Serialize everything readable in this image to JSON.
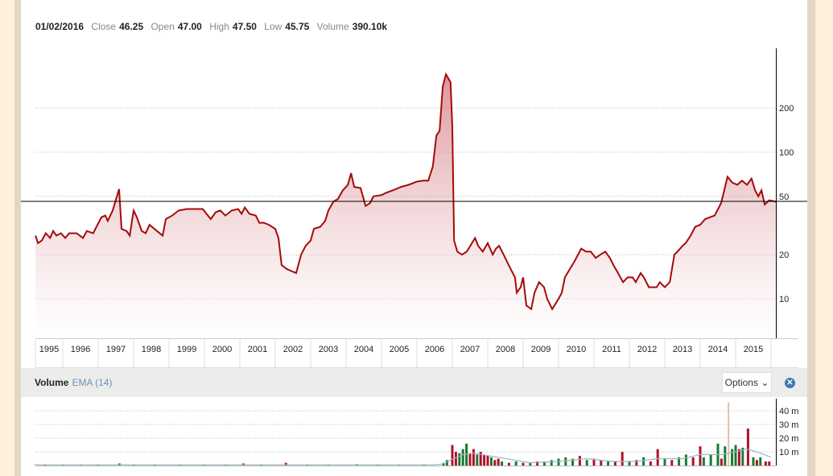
{
  "ohlc": {
    "date": "01/02/2016",
    "close_label": "Close",
    "close": "46.25",
    "open_label": "Open",
    "open": "47.00",
    "high_label": "High",
    "high": "47.50",
    "low_label": "Low",
    "low": "45.75",
    "volume_label": "Volume",
    "volume": "390.10k"
  },
  "volume_panel": {
    "title": "Volume",
    "indicator": "EMA (14)",
    "options_label": "Options",
    "close_icon": "close-circle-icon"
  },
  "colors": {
    "price_line": "#a50a0a",
    "up": "#1a7a2e",
    "down": "#b0102a",
    "ema": "#9ab8c8",
    "spike": "#d8c3b0"
  },
  "chart_data": [
    {
      "type": "area",
      "scale": "log",
      "y_ticks": [
        10,
        20,
        50,
        100,
        200
      ],
      "x_ticks": [
        "1995",
        "1996",
        "1997",
        "1998",
        "1999",
        "2000",
        "2001",
        "2002",
        "2003",
        "2004",
        "2005",
        "2006",
        "2007",
        "2008",
        "2009",
        "2010",
        "2011",
        "2012",
        "2013",
        "2014",
        "2015"
      ],
      "grid": true,
      "current_value": 46.25,
      "points": [
        [
          1995.23,
          27
        ],
        [
          1995.3,
          24
        ],
        [
          1995.41,
          25
        ],
        [
          1995.52,
          28
        ],
        [
          1995.64,
          26
        ],
        [
          1995.73,
          29
        ],
        [
          1995.82,
          27
        ],
        [
          1995.95,
          28
        ],
        [
          1996.07,
          26
        ],
        [
          1996.18,
          28
        ],
        [
          1996.39,
          28
        ],
        [
          1996.57,
          26
        ],
        [
          1996.68,
          29
        ],
        [
          1996.86,
          28
        ],
        [
          1996.98,
          32
        ],
        [
          1997.09,
          36
        ],
        [
          1997.2,
          37
        ],
        [
          1997.27,
          34
        ],
        [
          1997.41,
          40
        ],
        [
          1997.55,
          52
        ],
        [
          1997.59,
          56
        ],
        [
          1997.66,
          30
        ],
        [
          1997.8,
          29
        ],
        [
          1997.89,
          27
        ],
        [
          1998.0,
          40
        ],
        [
          1998.09,
          36
        ],
        [
          1998.23,
          29
        ],
        [
          1998.34,
          28
        ],
        [
          1998.45,
          32
        ],
        [
          1998.66,
          29
        ],
        [
          1998.82,
          27
        ],
        [
          1998.91,
          35
        ],
        [
          1999.09,
          37
        ],
        [
          1999.27,
          40
        ],
        [
          1999.5,
          41
        ],
        [
          1999.95,
          41
        ],
        [
          2000.18,
          35
        ],
        [
          2000.32,
          39
        ],
        [
          2000.45,
          40
        ],
        [
          2000.59,
          37
        ],
        [
          2000.77,
          40
        ],
        [
          2000.95,
          41
        ],
        [
          2001.05,
          38
        ],
        [
          2001.14,
          42
        ],
        [
          2001.27,
          38
        ],
        [
          2001.45,
          37
        ],
        [
          2001.55,
          33
        ],
        [
          2001.68,
          33
        ],
        [
          2001.82,
          32
        ],
        [
          2002.0,
          30
        ],
        [
          2002.09,
          26
        ],
        [
          2002.18,
          17
        ],
        [
          2002.32,
          16
        ],
        [
          2002.45,
          15.5
        ],
        [
          2002.59,
          15
        ],
        [
          2002.73,
          20
        ],
        [
          2002.86,
          23
        ],
        [
          2003.0,
          25
        ],
        [
          2003.09,
          30
        ],
        [
          2003.27,
          31
        ],
        [
          2003.41,
          34
        ],
        [
          2003.5,
          40
        ],
        [
          2003.64,
          46
        ],
        [
          2003.77,
          48
        ],
        [
          2003.91,
          55
        ],
        [
          2004.05,
          60
        ],
        [
          2004.14,
          72
        ],
        [
          2004.23,
          58
        ],
        [
          2004.41,
          57
        ],
        [
          2004.55,
          43
        ],
        [
          2004.68,
          45
        ],
        [
          2004.77,
          50
        ],
        [
          2005.0,
          51
        ],
        [
          2005.14,
          53
        ],
        [
          2005.32,
          55
        ],
        [
          2005.55,
          58
        ],
        [
          2005.77,
          60
        ],
        [
          2006.0,
          63
        ],
        [
          2006.18,
          64
        ],
        [
          2006.32,
          64
        ],
        [
          2006.45,
          80
        ],
        [
          2006.55,
          130
        ],
        [
          2006.64,
          140
        ],
        [
          2006.73,
          280
        ],
        [
          2006.82,
          340
        ],
        [
          2006.95,
          300
        ],
        [
          2007.0,
          150
        ],
        [
          2007.05,
          25
        ],
        [
          2007.14,
          21
        ],
        [
          2007.27,
          20
        ],
        [
          2007.41,
          21
        ],
        [
          2007.64,
          26
        ],
        [
          2007.73,
          23
        ],
        [
          2007.86,
          21
        ],
        [
          2008.0,
          24
        ],
        [
          2008.14,
          20
        ],
        [
          2008.23,
          22
        ],
        [
          2008.32,
          23
        ],
        [
          2008.45,
          20
        ],
        [
          2008.59,
          17
        ],
        [
          2008.77,
          14
        ],
        [
          2008.82,
          11
        ],
        [
          2008.93,
          12
        ],
        [
          2009.0,
          14
        ],
        [
          2009.09,
          9
        ],
        [
          2009.23,
          8.5
        ],
        [
          2009.32,
          11
        ],
        [
          2009.45,
          13
        ],
        [
          2009.59,
          12
        ],
        [
          2009.68,
          10
        ],
        [
          2009.82,
          8.5
        ],
        [
          2010.0,
          10
        ],
        [
          2010.09,
          11
        ],
        [
          2010.18,
          14
        ],
        [
          2010.32,
          16
        ],
        [
          2010.45,
          18
        ],
        [
          2010.64,
          22
        ],
        [
          2010.77,
          21
        ],
        [
          2010.91,
          21
        ],
        [
          2011.05,
          19
        ],
        [
          2011.18,
          20
        ],
        [
          2011.32,
          21
        ],
        [
          2011.45,
          19
        ],
        [
          2011.55,
          17
        ],
        [
          2011.68,
          15
        ],
        [
          2011.82,
          13
        ],
        [
          2011.95,
          14
        ],
        [
          2012.09,
          14
        ],
        [
          2012.18,
          13
        ],
        [
          2012.32,
          15
        ],
        [
          2012.41,
          14
        ],
        [
          2012.55,
          12
        ],
        [
          2012.77,
          12
        ],
        [
          2012.86,
          13
        ],
        [
          2013.0,
          12
        ],
        [
          2013.14,
          13
        ],
        [
          2013.27,
          20
        ],
        [
          2013.36,
          21
        ],
        [
          2013.5,
          23
        ],
        [
          2013.59,
          24
        ],
        [
          2013.73,
          27
        ],
        [
          2013.86,
          31
        ],
        [
          2014.0,
          32
        ],
        [
          2014.14,
          35
        ],
        [
          2014.27,
          36
        ],
        [
          2014.41,
          37
        ],
        [
          2014.59,
          45
        ],
        [
          2014.68,
          55
        ],
        [
          2014.77,
          68
        ],
        [
          2014.91,
          62
        ],
        [
          2015.05,
          60
        ],
        [
          2015.18,
          64
        ],
        [
          2015.32,
          60
        ],
        [
          2015.45,
          66
        ],
        [
          2015.55,
          55
        ],
        [
          2015.64,
          50
        ],
        [
          2015.73,
          55
        ],
        [
          2015.82,
          44
        ],
        [
          2015.95,
          47
        ],
        [
          2016.14,
          46
        ]
      ]
    },
    {
      "type": "bar",
      "y_ticks": [
        "10 m",
        "20 m",
        "30 m",
        "40 m"
      ],
      "y_tick_values": [
        10,
        20,
        30,
        40
      ],
      "grid": true,
      "bars": [
        [
          1995.5,
          0.4,
          "down"
        ],
        [
          1996.0,
          0.4,
          "up"
        ],
        [
          1996.5,
          0.5,
          "up"
        ],
        [
          1997.0,
          0.5,
          "up"
        ],
        [
          1997.6,
          1.5,
          "up"
        ],
        [
          1998.0,
          0.8,
          "up"
        ],
        [
          1998.6,
          0.4,
          "up"
        ],
        [
          1999.3,
          0.4,
          "up"
        ],
        [
          2000.0,
          0.4,
          "up"
        ],
        [
          2000.6,
          0.4,
          "up"
        ],
        [
          2001.1,
          1.5,
          "down"
        ],
        [
          2001.6,
          0.4,
          "up"
        ],
        [
          2002.3,
          2,
          "down"
        ],
        [
          2002.9,
          0.4,
          "up"
        ],
        [
          2003.5,
          0.4,
          "up"
        ],
        [
          2004.3,
          1,
          "up"
        ],
        [
          2004.9,
          0.4,
          "up"
        ],
        [
          2005.5,
          0.4,
          "up"
        ],
        [
          2006.2,
          0.5,
          "up"
        ],
        [
          2006.75,
          2,
          "up"
        ],
        [
          2006.85,
          4,
          "up"
        ],
        [
          2007.0,
          15,
          "down"
        ],
        [
          2007.1,
          10,
          "down"
        ],
        [
          2007.2,
          9,
          "up"
        ],
        [
          2007.3,
          12,
          "up"
        ],
        [
          2007.4,
          16,
          "up"
        ],
        [
          2007.5,
          9,
          "down"
        ],
        [
          2007.6,
          12,
          "down"
        ],
        [
          2007.7,
          8,
          "up"
        ],
        [
          2007.8,
          10,
          "down"
        ],
        [
          2007.9,
          8,
          "down"
        ],
        [
          2008.0,
          7,
          "down"
        ],
        [
          2008.1,
          6,
          "up"
        ],
        [
          2008.2,
          4,
          "down"
        ],
        [
          2008.3,
          5,
          "down"
        ],
        [
          2008.4,
          3,
          "up"
        ],
        [
          2008.6,
          2,
          "down"
        ],
        [
          2008.8,
          3,
          "up"
        ],
        [
          2009.0,
          2,
          "down"
        ],
        [
          2009.2,
          2,
          "up"
        ],
        [
          2009.4,
          3,
          "down"
        ],
        [
          2009.6,
          3,
          "up"
        ],
        [
          2009.8,
          4,
          "up"
        ],
        [
          2010.0,
          5,
          "up"
        ],
        [
          2010.2,
          6,
          "up"
        ],
        [
          2010.4,
          5,
          "up"
        ],
        [
          2010.6,
          7,
          "down"
        ],
        [
          2010.8,
          4,
          "up"
        ],
        [
          2011.0,
          5,
          "down"
        ],
        [
          2011.2,
          4,
          "down"
        ],
        [
          2011.4,
          3,
          "up"
        ],
        [
          2011.6,
          3,
          "down"
        ],
        [
          2011.8,
          10,
          "down"
        ],
        [
          2012.0,
          3,
          "up"
        ],
        [
          2012.2,
          4,
          "down"
        ],
        [
          2012.4,
          6,
          "up"
        ],
        [
          2012.6,
          3,
          "down"
        ],
        [
          2012.8,
          12,
          "down"
        ],
        [
          2013.0,
          5,
          "up"
        ],
        [
          2013.2,
          4,
          "down"
        ],
        [
          2013.4,
          6,
          "up"
        ],
        [
          2013.6,
          8,
          "up"
        ],
        [
          2013.8,
          6,
          "down"
        ],
        [
          2014.0,
          14,
          "down"
        ],
        [
          2014.1,
          6,
          "up"
        ],
        [
          2014.3,
          8,
          "up"
        ],
        [
          2014.5,
          16,
          "up"
        ],
        [
          2014.6,
          5,
          "down"
        ],
        [
          2014.7,
          14,
          "up"
        ],
        [
          2014.8,
          46,
          "spike"
        ],
        [
          2014.9,
          12,
          "up"
        ],
        [
          2015.0,
          15,
          "up"
        ],
        [
          2015.1,
          12,
          "down"
        ],
        [
          2015.2,
          13,
          "up"
        ],
        [
          2015.35,
          27,
          "down"
        ],
        [
          2015.5,
          6,
          "up"
        ],
        [
          2015.6,
          4,
          "down"
        ],
        [
          2015.7,
          6,
          "up"
        ],
        [
          2015.85,
          3,
          "down"
        ],
        [
          2015.95,
          3,
          "down"
        ]
      ],
      "ema": [
        [
          1995.2,
          0.5
        ],
        [
          2006.5,
          0.5
        ],
        [
          2006.7,
          1
        ],
        [
          2007.3,
          8
        ],
        [
          2007.6,
          9
        ],
        [
          2008.3,
          6
        ],
        [
          2009.2,
          2
        ],
        [
          2010.0,
          3
        ],
        [
          2010.8,
          5
        ],
        [
          2011.5,
          3
        ],
        [
          2012.2,
          3
        ],
        [
          2012.8,
          5
        ],
        [
          2013.5,
          5
        ],
        [
          2014.0,
          8
        ],
        [
          2014.6,
          8
        ],
        [
          2015.0,
          10
        ],
        [
          2015.3,
          12
        ],
        [
          2015.6,
          10
        ],
        [
          2016.0,
          6
        ]
      ]
    }
  ]
}
